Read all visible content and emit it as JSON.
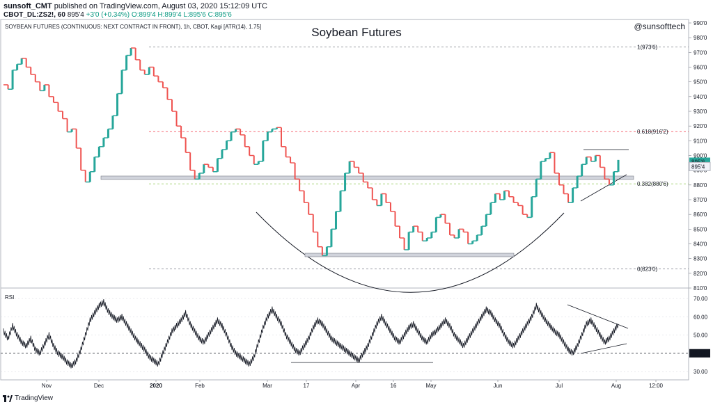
{
  "header": {
    "user": "sunsoft_CMT",
    "published": "published on TradingView.com, August 03, 2020 15:12:09 UTC",
    "symbol": "CBOT_DL:ZS2!, 60",
    "last": "895'4",
    "change": "+3'0 (+0.34%)",
    "ohlc": "O:899'4 H:899'4 L:895'6 C:895'6"
  },
  "chart_data": {
    "type": "line",
    "title": "Soybean Futures",
    "subtitle": "SOYBEAN FUTURES (CONTINUOUS: NEXT CONTRACT IN FRONT), 1h, CBOT, Kagi [ATR(14), 1.75]",
    "watermark": "@sunsofttech",
    "x_labels": [
      "Nov",
      "Dec",
      "2020",
      "Feb",
      "Mar",
      "17",
      "Apr",
      "16",
      "May",
      "Jun",
      "Jul",
      "Aug",
      "12:00"
    ],
    "y_ticks": [
      "990'0",
      "980'0",
      "970'0",
      "960'0",
      "950'0",
      "940'0",
      "930'0",
      "920'0",
      "910'0",
      "900'0",
      "890'0",
      "880'0",
      "870'0",
      "860'0",
      "850'0",
      "840'0",
      "830'0",
      "820'0",
      "810'0"
    ],
    "ylim": [
      810,
      990
    ],
    "series": [
      {
        "values": [
          948,
          945,
          958,
          962,
          966,
          960,
          955,
          950,
          944,
          948,
          940,
          936,
          930,
          925,
          916,
          918,
          905,
          890,
          882,
          889,
          899,
          906,
          912,
          918,
          927,
          942,
          958,
          968,
          973,
          965,
          958,
          955,
          960,
          954,
          950,
          946,
          938,
          930,
          920,
          912,
          902,
          890,
          884,
          888,
          894,
          892,
          889,
          898,
          904,
          910,
          916,
          918,
          914,
          906,
          900,
          894,
          896,
          910,
          916,
          918,
          919,
          906,
          899,
          895,
          884,
          876,
          868,
          860,
          848,
          838,
          832,
          838,
          850,
          862,
          876,
          888,
          896,
          892,
          888,
          882,
          878,
          870,
          866,
          874,
          868,
          862,
          852,
          844,
          836,
          848,
          852,
          848,
          842,
          844,
          848,
          858,
          860,
          854,
          846,
          844,
          850,
          848,
          840,
          842,
          846,
          852,
          860,
          868,
          874,
          870,
          876,
          872,
          868,
          866,
          860,
          858,
          872,
          884,
          896,
          898,
          902,
          888,
          880,
          874,
          868,
          878,
          886,
          894,
          899,
          896,
          900,
          892,
          884,
          880,
          889,
          897
        ]
      }
    ],
    "fib_levels": [
      {
        "label": "1(973'6)",
        "value": 973.75,
        "color": "#787b86"
      },
      {
        "label": "0.618(916'2)",
        "value": 916.25,
        "color": "#f23645"
      },
      {
        "label": "0.382(880'6)",
        "value": 880.75,
        "color": "#8bc34a"
      },
      {
        "label": "0(823'0)",
        "value": 823.0,
        "color": "#787b86"
      }
    ],
    "price_labels": [
      {
        "label": "895'6",
        "value": 895.75,
        "color": "#26a69a"
      },
      {
        "label": "895'4",
        "value": 892.5,
        "color": "#f0f3fa"
      }
    ],
    "rsi": {
      "label": "RSI",
      "ylim": [
        30,
        70
      ],
      "ticks": [
        "70.00",
        "60.00",
        "50.00",
        "40.00",
        "30.00"
      ],
      "highlight": "40.00",
      "values": [
        52,
        48,
        55,
        50,
        46,
        44,
        48,
        42,
        40,
        45,
        50,
        44,
        40,
        38,
        35,
        33,
        36,
        42,
        50,
        58,
        62,
        66,
        68,
        63,
        60,
        58,
        60,
        56,
        52,
        48,
        45,
        42,
        38,
        36,
        34,
        40,
        46,
        52,
        55,
        58,
        62,
        56,
        52,
        48,
        46,
        50,
        54,
        58,
        55,
        50,
        44,
        40,
        38,
        36,
        34,
        38,
        46,
        54,
        60,
        64,
        60,
        56,
        50,
        46,
        42,
        40,
        44,
        48,
        54,
        58,
        56,
        52,
        48,
        46,
        44,
        42,
        40,
        38,
        36,
        40,
        44,
        50,
        56,
        60,
        56,
        52,
        48,
        46,
        50,
        54,
        56,
        52,
        48,
        46,
        50,
        52,
        55,
        58,
        55,
        50,
        47,
        44,
        48,
        52,
        56,
        60,
        64,
        62,
        58,
        55,
        50,
        46,
        44,
        48,
        52,
        56,
        60,
        66,
        62,
        58,
        55,
        52,
        50,
        46,
        42,
        40,
        44,
        50,
        56,
        58,
        54,
        50,
        46,
        48,
        52,
        56
      ]
    }
  }
}
